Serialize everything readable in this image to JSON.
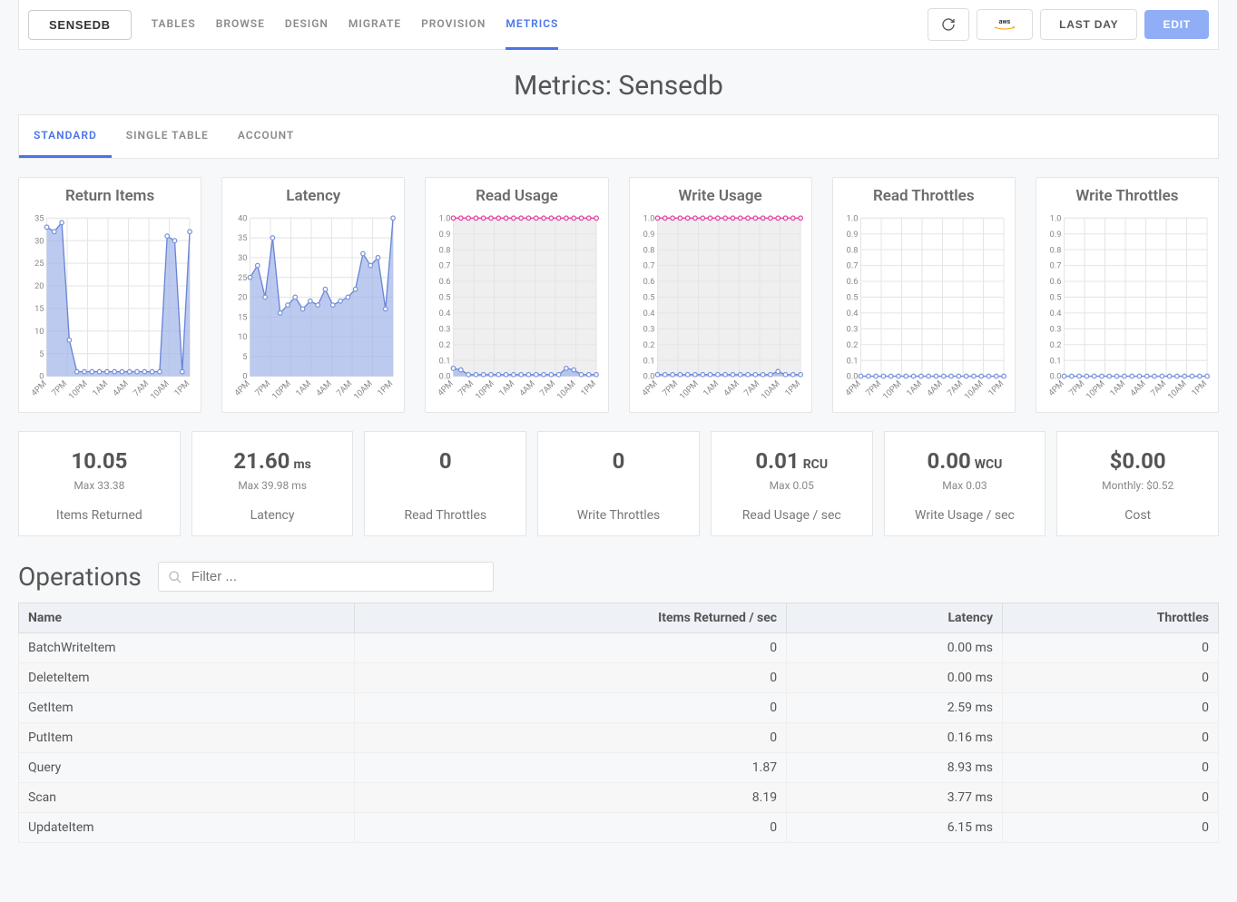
{
  "colors": {
    "accent": "#4a74ea",
    "area_fill": "#9fb3e8",
    "area_stroke": "#6b85d6",
    "marker": "#7a93db",
    "cap_line": "#e63fa0",
    "grid": "#e5e5e5",
    "axis_text": "#888888",
    "card_bg": "#ffffff",
    "page_bg": "#f6f8fa"
  },
  "topbar": {
    "db_label": "SENSEDB",
    "links": [
      "TABLES",
      "BROWSE",
      "DESIGN",
      "MIGRATE",
      "PROVISION",
      "METRICS"
    ],
    "active_link": 5,
    "refresh_tooltip": "Refresh",
    "aws_label": "aws",
    "range_label": "LAST DAY",
    "edit_label": "EDIT"
  },
  "page_title": "Metrics: Sensedb",
  "tabs": {
    "items": [
      "STANDARD",
      "SINGLE TABLE",
      "ACCOUNT"
    ],
    "active": 0
  },
  "x_categories": [
    "4PM",
    "7PM",
    "10PM",
    "1AM",
    "4AM",
    "7AM",
    "10AM",
    "1PM"
  ],
  "charts": [
    {
      "name": "return-items",
      "title": "Return Items",
      "type": "area",
      "ymin": 0,
      "ymax": 35,
      "ystep": 5,
      "values": [
        33,
        32,
        34,
        8,
        1,
        1,
        1,
        1,
        1,
        1,
        1,
        1,
        1,
        1,
        1,
        1,
        31,
        30,
        1,
        32
      ],
      "cap": null,
      "fill": "#9fb3e8",
      "stroke": "#6b85d6",
      "marker": "#7a93db"
    },
    {
      "name": "latency",
      "title": "Latency",
      "type": "area",
      "ymin": 0,
      "ymax": 40,
      "ystep": 5,
      "values": [
        25,
        28,
        20,
        35,
        16,
        18,
        20,
        17,
        19,
        18,
        22,
        18,
        19,
        20,
        22,
        31,
        28,
        30,
        17,
        40
      ],
      "cap": null,
      "fill": "#9fb3e8",
      "stroke": "#6b85d6",
      "marker": "#7a93db"
    },
    {
      "name": "read-usage",
      "title": "Read Usage",
      "type": "area",
      "ymin": 0,
      "ymax": 1,
      "ystep": 0.1,
      "values": [
        0.05,
        0.04,
        0.01,
        0.01,
        0.01,
        0.01,
        0.01,
        0.01,
        0.01,
        0.01,
        0.01,
        0.01,
        0.01,
        0.01,
        0.01,
        0.05,
        0.04,
        0.01,
        0.01,
        0.01
      ],
      "cap": 1,
      "fill": "#9fb3e8",
      "stroke": "#6b85d6",
      "marker": "#7a93db",
      "capColor": "#e63fa0",
      "shade": true
    },
    {
      "name": "write-usage",
      "title": "Write Usage",
      "type": "area",
      "ymin": 0,
      "ymax": 1,
      "ystep": 0.1,
      "values": [
        0.01,
        0.01,
        0.01,
        0.01,
        0.01,
        0.01,
        0.01,
        0.01,
        0.01,
        0.01,
        0.01,
        0.01,
        0.01,
        0.01,
        0.01,
        0.01,
        0.03,
        0.01,
        0.01,
        0.01
      ],
      "cap": 1,
      "fill": "#9fb3e8",
      "stroke": "#6b85d6",
      "marker": "#7a93db",
      "capColor": "#e63fa0",
      "shade": true
    },
    {
      "name": "read-throttles",
      "title": "Read Throttles",
      "type": "area",
      "ymin": 0,
      "ymax": 1,
      "ystep": 0.1,
      "values": [
        0,
        0,
        0,
        0,
        0,
        0,
        0,
        0,
        0,
        0,
        0,
        0,
        0,
        0,
        0,
        0,
        0,
        0,
        0,
        0
      ],
      "cap": null,
      "fill": "#9fb3e8",
      "stroke": "#6b85d6",
      "marker": "#7a93db"
    },
    {
      "name": "write-throttles",
      "title": "Write Throttles",
      "type": "area",
      "ymin": 0,
      "ymax": 1,
      "ystep": 0.1,
      "values": [
        0,
        0,
        0,
        0,
        0,
        0,
        0,
        0,
        0,
        0,
        0,
        0,
        0,
        0,
        0,
        0,
        0,
        0,
        0,
        0
      ],
      "cap": null,
      "fill": "#9fb3e8",
      "stroke": "#6b85d6",
      "marker": "#7a93db"
    }
  ],
  "stats": [
    {
      "value": "10.05",
      "unit": "",
      "sub": "Max 33.38",
      "label": "Items Returned"
    },
    {
      "value": "21.60",
      "unit": "ms",
      "sub": "Max 39.98 ms",
      "label": "Latency"
    },
    {
      "value": "0",
      "unit": "",
      "sub": "",
      "label": "Read Throttles"
    },
    {
      "value": "0",
      "unit": "",
      "sub": "",
      "label": "Write Throttles"
    },
    {
      "value": "0.01",
      "unit": "RCU",
      "sub": "Max 0.05",
      "label": "Read Usage / sec"
    },
    {
      "value": "0.00",
      "unit": "WCU",
      "sub": "Max 0.03",
      "label": "Write Usage / sec"
    },
    {
      "value": "$0.00",
      "unit": "",
      "sub": "Monthly: $0.52",
      "label": "Cost"
    }
  ],
  "operations": {
    "heading": "Operations",
    "filter_placeholder": "Filter ...",
    "columns": [
      "Name",
      "Items Returned / sec",
      "Latency",
      "Throttles"
    ],
    "col_widths": [
      "28%",
      "36%",
      "18%",
      "18%"
    ],
    "rows": [
      [
        "BatchWriteItem",
        "0",
        "0.00 ms",
        "0"
      ],
      [
        "DeleteItem",
        "0",
        "0.00 ms",
        "0"
      ],
      [
        "GetItem",
        "0",
        "2.59 ms",
        "0"
      ],
      [
        "PutItem",
        "0",
        "0.16 ms",
        "0"
      ],
      [
        "Query",
        "1.87",
        "8.93 ms",
        "0"
      ],
      [
        "Scan",
        "8.19",
        "3.77 ms",
        "0"
      ],
      [
        "UpdateItem",
        "0",
        "6.15 ms",
        "0"
      ]
    ]
  }
}
